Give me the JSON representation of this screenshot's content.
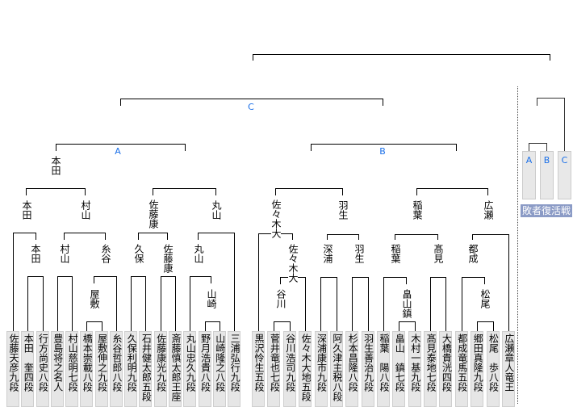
{
  "blocks": {
    "a": "A",
    "b": "B",
    "c": "C"
  },
  "players": [
    "佐藤天彦九段",
    "本田　奎四段",
    "行方尚史八段",
    "豊島将之名人",
    "村山慈明七段",
    "橋本崇載八段",
    "屋敷伸之九段",
    "糸谷哲郎八段",
    "久保利明九段",
    "石井健太郎五段",
    "佐藤康光九段",
    "斎藤慎太郎王座",
    "丸山忠久九段",
    "野月浩貴八段",
    "山崎隆之八段",
    "三浦弘行九段",
    "黒沢怜生五段",
    "菅井竜也七段",
    "谷川浩司九段",
    "佐々木大地五段",
    "深浦康市九段",
    "阿久津主税八段",
    "杉本昌隆八段",
    "羽生善治九段",
    "稲葉　陽八段",
    "畠山　鎮七段",
    "木村一基九段",
    "髙見泰地七段",
    "大橋貴洸四段",
    "都成竜馬五段",
    "郷田真隆九段",
    "松尾　歩八段",
    "広瀬章人竜王"
  ],
  "winners": {
    "block_a": [
      "本田"
    ],
    "quarter": [
      "本田",
      "村山",
      "佐藤康",
      "丸山",
      "佐々木大",
      "羽生",
      "稲葉",
      "広瀬"
    ],
    "round2": [
      "本田",
      "村山",
      "糸谷",
      "久保",
      "佐藤康",
      "丸山",
      "佐々木大",
      "深浦",
      "羽生",
      "稲葉",
      "髙見",
      "都成"
    ],
    "round1": [
      "屋敷",
      "山崎",
      "谷川",
      "畠山鎮",
      "松尾"
    ]
  },
  "repechage": {
    "title": "敗者復活戦",
    "blocks": [
      "A",
      "B",
      "C"
    ]
  },
  "colors": {
    "block_label": "#1a6fe8",
    "repechage_caption_bg": "#8b9bc6",
    "player_box": "#e6e6e6"
  }
}
